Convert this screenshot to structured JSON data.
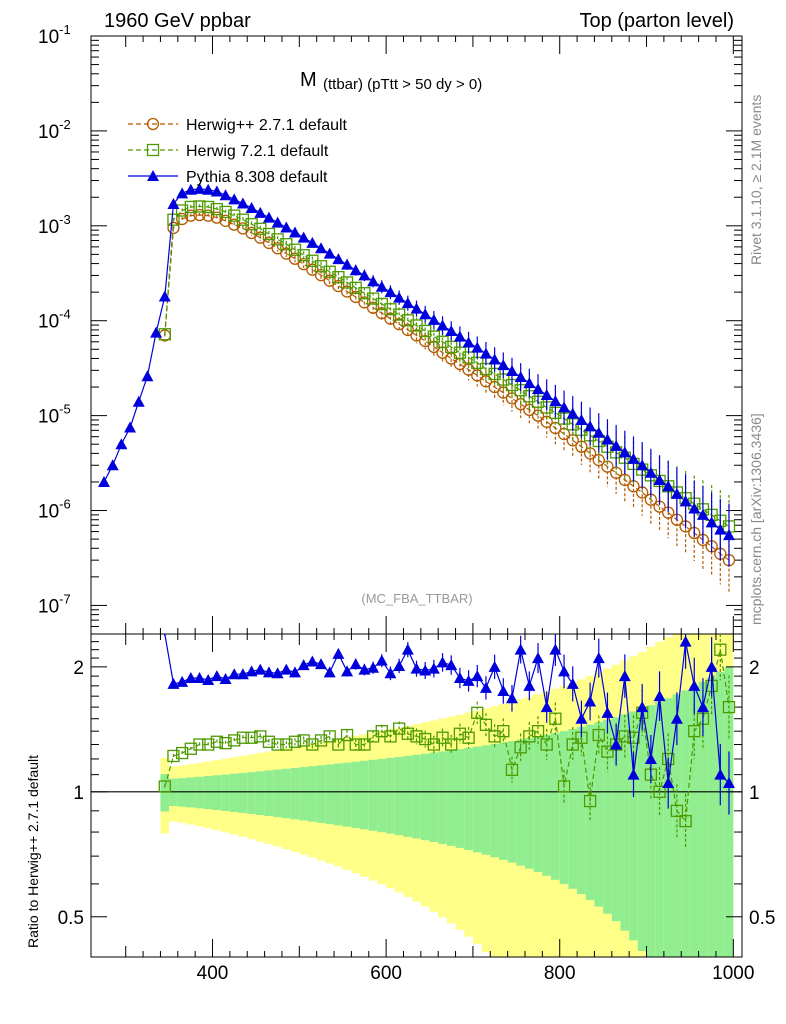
{
  "header": {
    "left_title": "1960 GeV ppbar",
    "right_title": "Top (parton level)"
  },
  "side_labels": {
    "rivet": "Rivet 3.1.10, ≥ 2.1M events",
    "mcplots": "mcplots.cern.ch [arXiv:1306.3436]"
  },
  "chart_data": [
    {
      "panel": "main",
      "type": "line",
      "title_main": "M",
      "title_sub": "(ttbar) (pTtt > 50 dy > 0)",
      "analysis_tag": "(MC_FBA_TTBAR)",
      "ylog": true,
      "xlim": [
        260,
        1010
      ],
      "ylim": [
        5e-08,
        0.1
      ],
      "y_tick_labels": [
        "10^-7",
        "10^-6",
        "10^-5",
        "10^-4",
        "10^-3",
        "10^-2",
        "10^-1"
      ],
      "legend_position": "top-left",
      "colors": {
        "herwigpp": "#b35900",
        "herwig7": "#4d9900",
        "pythia": "#0000dd"
      },
      "series": [
        {
          "name": "Herwig++ 2.7.1 default",
          "marker": "circle",
          "line": "dashed",
          "x": [
            345,
            355,
            365,
            375,
            385,
            395,
            405,
            415,
            425,
            435,
            445,
            455,
            465,
            475,
            485,
            495,
            505,
            515,
            525,
            535,
            545,
            555,
            565,
            575,
            585,
            595,
            605,
            615,
            625,
            635,
            645,
            655,
            665,
            675,
            685,
            695,
            705,
            715,
            725,
            735,
            745,
            755,
            765,
            775,
            785,
            795,
            805,
            815,
            825,
            835,
            845,
            855,
            865,
            875,
            885,
            895,
            905,
            915,
            925,
            935,
            945,
            955,
            965,
            975,
            985,
            995
          ],
          "y": [
            7e-05,
            0.00095,
            0.00118,
            0.00128,
            0.0013,
            0.00128,
            0.00122,
            0.00113,
            0.00103,
            0.00094,
            0.00084,
            0.00075,
            0.00066,
            0.00058,
            0.00051,
            0.00045,
            0.000395,
            0.000345,
            0.000302,
            0.000264,
            0.000232,
            0.000203,
            0.000178,
            0.000156,
            0.000137,
            0.00012,
            0.000105,
            9.2e-05,
            8e-05,
            7e-05,
            6.1e-05,
            5.3e-05,
            4.6e-05,
            4e-05,
            3.5e-05,
            3.05e-05,
            2.65e-05,
            2.3e-05,
            2e-05,
            1.75e-05,
            1.52e-05,
            1.32e-05,
            1.15e-05,
            1e-05,
            8.6e-06,
            7.4e-06,
            6.4e-06,
            5.5e-06,
            4.7e-06,
            4e-06,
            3.4e-06,
            2.9e-06,
            2.5e-06,
            2.1e-06,
            1.8e-06,
            1.55e-06,
            1.3e-06,
            1.1e-06,
            9.5e-07,
            8e-07,
            6.8e-07,
            5.8e-07,
            4.9e-07,
            4.2e-07,
            3.5e-07,
            3e-07
          ]
        },
        {
          "name": "Herwig 7.2.1 default",
          "marker": "square",
          "line": "dashed",
          "x": [
            345,
            355,
            365,
            375,
            385,
            395,
            405,
            415,
            425,
            435,
            445,
            455,
            465,
            475,
            485,
            495,
            505,
            515,
            525,
            535,
            545,
            555,
            565,
            575,
            585,
            595,
            605,
            615,
            625,
            635,
            645,
            655,
            665,
            675,
            685,
            695,
            705,
            715,
            725,
            735,
            745,
            755,
            765,
            775,
            785,
            795,
            805,
            815,
            825,
            835,
            845,
            855,
            865,
            875,
            885,
            895,
            905,
            915,
            925,
            935,
            945,
            955,
            965,
            975,
            985,
            995
          ],
          "y": [
            7.2e-05,
            0.00116,
            0.00145,
            0.00158,
            0.0016,
            0.00158,
            0.0015,
            0.0014,
            0.00128,
            0.00116,
            0.00104,
            0.00093,
            0.00082,
            0.00072,
            0.00064,
            0.00056,
            0.00049,
            0.000428,
            0.000375,
            0.000328,
            0.000288,
            0.000253,
            0.000222,
            0.000195,
            0.000171,
            0.00015,
            0.000132,
            0.000116,
            0.000101,
            8.9e-05,
            7.8e-05,
            6.8e-05,
            6e-05,
            5.3e-05,
            4.6e-05,
            4.1e-05,
            3.6e-05,
            3.1e-05,
            2.75e-05,
            2.4e-05,
            2.1e-05,
            1.85e-05,
            1.6e-05,
            1.4e-05,
            1.22e-05,
            1.07e-05,
            9.3e-06,
            8.1e-06,
            7.1e-06,
            6.2e-06,
            5.4e-06,
            4.7e-06,
            4.1e-06,
            3.6e-06,
            3.1e-06,
            2.7e-06,
            2.35e-06,
            2.05e-06,
            1.8e-06,
            1.55e-06,
            1.35e-06,
            1.18e-06,
            1.03e-06,
            9e-07,
            7.8e-07,
            6.8e-07
          ]
        },
        {
          "name": "Pythia 8.308 default",
          "marker": "triangle",
          "line": "solid",
          "x": [
            275,
            285,
            295,
            305,
            315,
            325,
            335,
            345,
            355,
            365,
            375,
            385,
            395,
            405,
            415,
            425,
            435,
            445,
            455,
            465,
            475,
            485,
            495,
            505,
            515,
            525,
            535,
            545,
            555,
            565,
            575,
            585,
            595,
            605,
            615,
            625,
            635,
            645,
            655,
            665,
            675,
            685,
            695,
            705,
            715,
            725,
            735,
            745,
            755,
            765,
            775,
            785,
            795,
            805,
            815,
            825,
            835,
            845,
            855,
            865,
            875,
            885,
            895,
            905,
            915,
            925,
            935,
            945,
            955,
            965,
            975,
            985,
            995
          ],
          "y": [
            2e-06,
            3e-06,
            5e-06,
            7.5e-06,
            1.4e-05,
            2.6e-05,
            7.5e-05,
            0.00018,
            0.0017,
            0.0022,
            0.0024,
            0.00245,
            0.0024,
            0.0023,
            0.0021,
            0.0019,
            0.00172,
            0.00154,
            0.00137,
            0.00122,
            0.00108,
            0.00096,
            0.00085,
            0.00075,
            0.00066,
            0.00058,
            0.00051,
            0.000445,
            0.00039,
            0.00034,
            0.0003,
            0.00026,
            0.000228,
            0.0002,
            0.000175,
            0.000153,
            0.000134,
            0.000117,
            0.000102,
            8.9e-05,
            7.8e-05,
            6.8e-05,
            5.9e-05,
            5.2e-05,
            4.5e-05,
            3.9e-05,
            3.4e-05,
            2.95e-05,
            2.55e-05,
            2.2e-05,
            1.9e-05,
            1.65e-05,
            1.42e-05,
            1.22e-05,
            1.05e-05,
            9e-06,
            7.7e-06,
            6.6e-06,
            5.6e-06,
            4.8e-06,
            4.1e-06,
            3.5e-06,
            3e-06,
            2.5e-06,
            2.1e-06,
            1.8e-06,
            1.5e-06,
            1.25e-06,
            1.05e-06,
            9e-07,
            7.5e-07,
            6.3e-07,
            5.5e-07
          ]
        }
      ]
    },
    {
      "panel": "ratio",
      "type": "line",
      "ylabel": "Ratio to Herwig++ 2.7.1 default",
      "xlim": [
        260,
        1010
      ],
      "ylim": [
        0.4,
        2.4
      ],
      "x_tick_labels": [
        "400",
        "600",
        "800",
        "1000"
      ],
      "y_tick_labels": [
        "0.5",
        "1",
        "2"
      ],
      "reference_line": 1,
      "band_colors": {
        "inner": "#90ee90",
        "outer": "#ffff88"
      },
      "series": [
        {
          "name": "Herwig 7.2.1 default",
          "x": [
            345,
            355,
            365,
            375,
            385,
            395,
            405,
            415,
            425,
            435,
            445,
            455,
            465,
            475,
            485,
            495,
            505,
            515,
            525,
            535,
            545,
            555,
            565,
            575,
            585,
            595,
            605,
            615,
            625,
            635,
            645,
            655,
            665,
            675,
            685,
            695,
            705,
            715,
            725,
            735,
            745,
            755,
            765,
            775,
            785,
            795,
            805,
            815,
            825,
            835,
            845,
            855,
            865,
            875,
            885,
            895,
            905,
            915,
            925,
            935,
            945,
            955,
            965,
            975,
            985,
            995
          ],
          "y": [
            1.03,
            1.22,
            1.24,
            1.27,
            1.3,
            1.3,
            1.32,
            1.31,
            1.33,
            1.35,
            1.35,
            1.36,
            1.32,
            1.3,
            1.3,
            1.32,
            1.33,
            1.3,
            1.33,
            1.36,
            1.3,
            1.37,
            1.3,
            1.3,
            1.36,
            1.4,
            1.36,
            1.42,
            1.38,
            1.36,
            1.34,
            1.3,
            1.35,
            1.3,
            1.38,
            1.35,
            1.55,
            1.45,
            1.36,
            1.4,
            1.13,
            1.28,
            1.36,
            1.4,
            1.3,
            1.5,
            1.03,
            1.3,
            1.35,
            0.95,
            1.37,
            1.25,
            1.3,
            1.36,
            1.35,
            1.55,
            1.1,
            1.0,
            1.2,
            0.9,
            0.85,
            1.4,
            1.5,
            1.8,
            2.2,
            1.6
          ]
        },
        {
          "name": "Pythia 8.308 default",
          "x": [
            345,
            355,
            365,
            375,
            385,
            395,
            405,
            415,
            425,
            435,
            445,
            455,
            465,
            475,
            485,
            495,
            505,
            515,
            525,
            535,
            545,
            555,
            565,
            575,
            585,
            595,
            605,
            615,
            625,
            635,
            645,
            655,
            665,
            675,
            685,
            695,
            705,
            715,
            725,
            735,
            745,
            755,
            765,
            775,
            785,
            795,
            805,
            815,
            825,
            835,
            845,
            855,
            865,
            875,
            885,
            895,
            905,
            915,
            925,
            935,
            945,
            955,
            965,
            975,
            985,
            995
          ],
          "y": [
            2.5,
            1.82,
            1.84,
            1.88,
            1.88,
            1.86,
            1.9,
            1.87,
            1.92,
            1.92,
            1.95,
            1.97,
            1.94,
            1.93,
            1.97,
            1.94,
            2.02,
            2.06,
            2.03,
            1.94,
            2.15,
            1.95,
            2.03,
            1.97,
            1.99,
            2.07,
            1.93,
            2.01,
            2.2,
            1.98,
            1.96,
            1.98,
            2.05,
            2.02,
            1.88,
            1.85,
            1.9,
            1.78,
            2.0,
            1.75,
            1.68,
            2.2,
            1.8,
            2.1,
            1.6,
            2.2,
            1.95,
            1.82,
            1.5,
            1.65,
            2.1,
            1.55,
            1.3,
            1.9,
            1.1,
            1.6,
            1.2,
            1.7,
            1.05,
            1.5,
            2.3,
            1.8,
            1.6,
            2.0,
            1.1,
            1.05
          ]
        }
      ]
    }
  ]
}
